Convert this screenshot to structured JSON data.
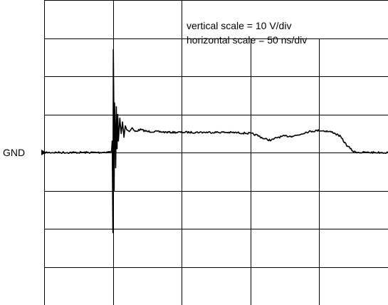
{
  "chart_data": {
    "type": "line",
    "title": "",
    "xlabel": "",
    "ylabel": "",
    "annotations": {
      "vertical_scale": "vertical scale = 10 V/div",
      "horizontal_scale": "horizontal scale = 50 ns/div"
    },
    "ground_label": "GND",
    "units": {
      "x": "ns",
      "y": "V"
    },
    "xlim": [
      0,
      250
    ],
    "ylim": [
      -40,
      40
    ],
    "divisions": {
      "x": 5,
      "y": 8
    },
    "grid": true,
    "legend": "none",
    "series": [
      {
        "x": [
          0,
          10,
          20,
          30,
          40,
          49,
          49.5,
          50,
          50.3,
          50.6,
          50.9,
          51.2,
          51.6,
          52,
          52.5,
          53,
          53.5,
          54,
          55,
          56,
          57,
          58,
          59,
          60,
          62,
          64,
          66,
          70,
          75,
          80,
          90,
          100,
          110,
          120,
          130,
          140,
          150,
          155,
          160,
          165,
          170,
          175,
          180,
          185,
          190,
          195,
          200,
          205,
          210,
          215,
          220,
          225,
          230,
          240,
          250
        ],
        "values": [
          0,
          0,
          0,
          0,
          0,
          0.2,
          3,
          -21,
          27,
          14,
          -10,
          13,
          6,
          -4,
          12,
          1,
          10,
          3,
          9,
          5,
          8,
          4,
          7,
          6,
          5.5,
          6.5,
          5.5,
          6,
          5.5,
          5.5,
          5.3,
          5.3,
          5.3,
          5.3,
          5.3,
          5.2,
          5,
          4.5,
          3.6,
          3.2,
          4,
          4.3,
          4.3,
          4.6,
          5.3,
          5.6,
          5.8,
          5.6,
          5.3,
          4.3,
          1.9,
          0.2,
          0,
          0,
          0
        ]
      }
    ]
  }
}
